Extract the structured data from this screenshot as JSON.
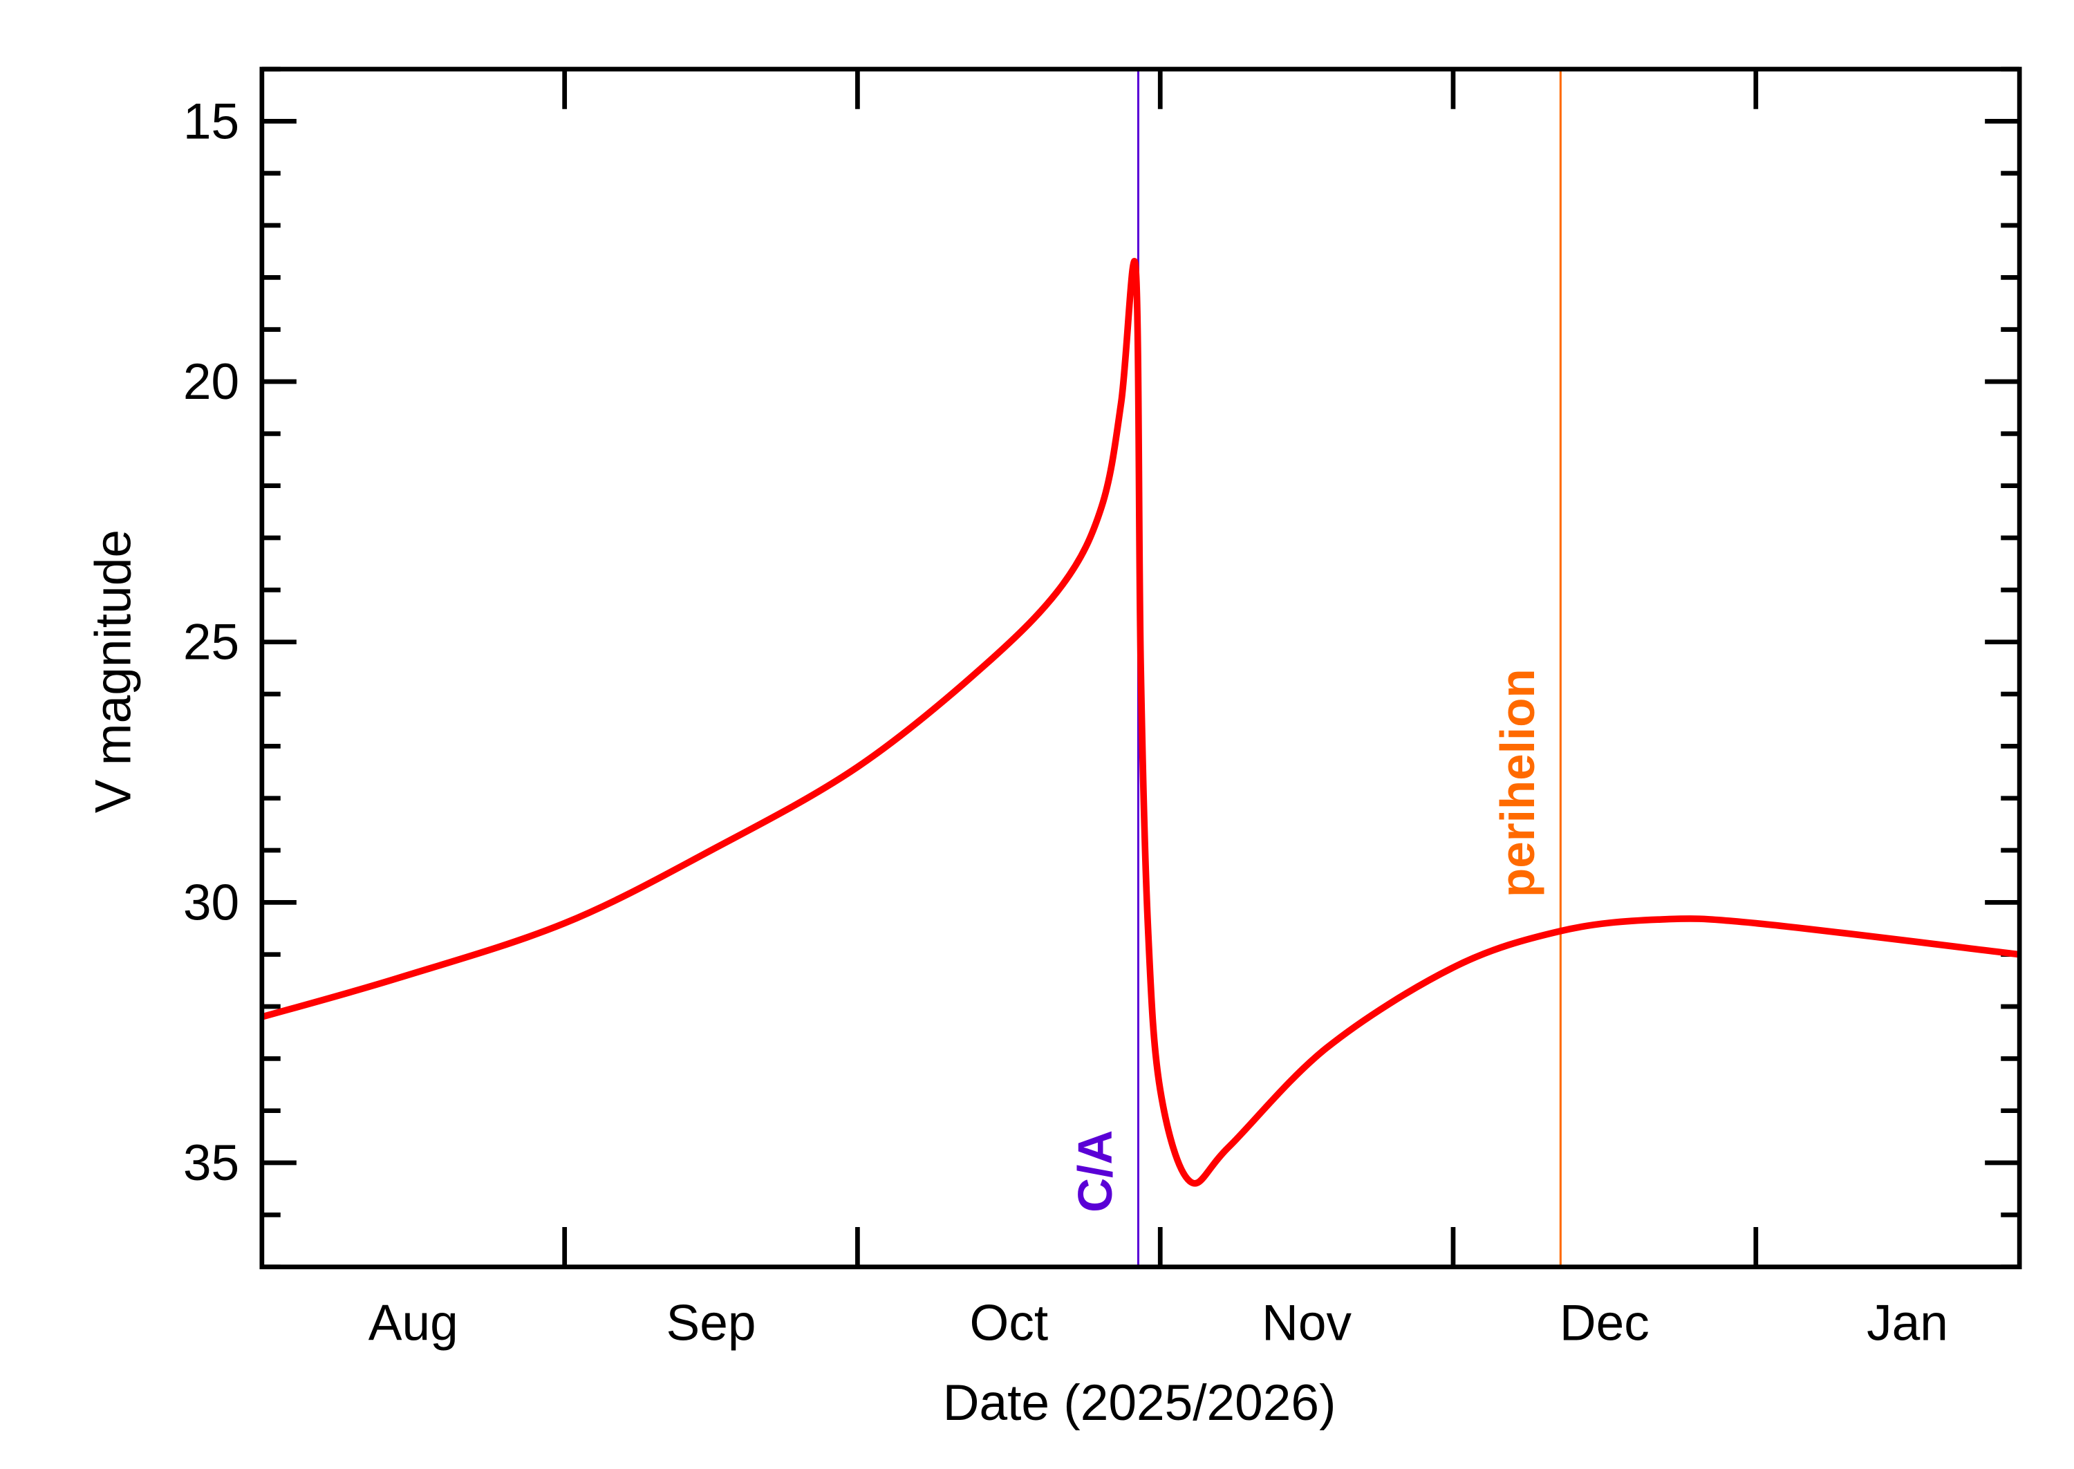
{
  "chart_data": {
    "type": "line",
    "title": "",
    "xlabel": "Date (2025/2026)",
    "ylabel": "V magnitude",
    "xlim": [
      "2025-08-01",
      "2026-01-28"
    ],
    "ylim": [
      37,
      14
    ],
    "y_inverted": true,
    "grid": false,
    "x_tick_labels": [
      {
        "label": "Aug",
        "month_start": "2025-08-01"
      },
      {
        "label": "Sep",
        "month_start": "2025-09-01"
      },
      {
        "label": "Oct",
        "month_start": "2025-10-01"
      },
      {
        "label": "Nov",
        "month_start": "2025-11-01"
      },
      {
        "label": "Dec",
        "month_start": "2025-12-01"
      },
      {
        "label": "Jan",
        "month_start": "2026-01-01"
      }
    ],
    "y_major_ticks": [
      15,
      20,
      25,
      30,
      35
    ],
    "y_minor_step": 1,
    "series": [
      {
        "color": "#ff0000",
        "points": [
          [
            "2025-08-01",
            32.2
          ],
          [
            "2025-08-15",
            31.45
          ],
          [
            "2025-09-01",
            30.4
          ],
          [
            "2025-09-16",
            29.0
          ],
          [
            "2025-10-01",
            27.4
          ],
          [
            "2025-10-14",
            25.45
          ],
          [
            "2025-10-22",
            23.9
          ],
          [
            "2025-10-26",
            22.4
          ],
          [
            "2025-10-28",
            20.4
          ],
          [
            "2025-10-29T12:00",
            17.85
          ],
          [
            "2025-10-30",
            25.4
          ],
          [
            "2025-10-30T18:00",
            30.5
          ],
          [
            "2025-11-01",
            33.6
          ],
          [
            "2025-11-04",
            35.35
          ],
          [
            "2025-11-08",
            34.7
          ],
          [
            "2025-11-18",
            32.8
          ],
          [
            "2025-12-01",
            31.25
          ],
          [
            "2025-12-12",
            30.55
          ],
          [
            "2025-12-22",
            30.33
          ],
          [
            "2026-01-01",
            30.4
          ],
          [
            "2026-01-28",
            31.0
          ]
        ]
      }
    ],
    "annotations": [
      {
        "label": "C/A",
        "date": "2025-10-29T18:00",
        "color": "#5a00d6"
      },
      {
        "label": "perihelion",
        "date": "2025-12-12",
        "color": "#ff6a00"
      }
    ]
  }
}
